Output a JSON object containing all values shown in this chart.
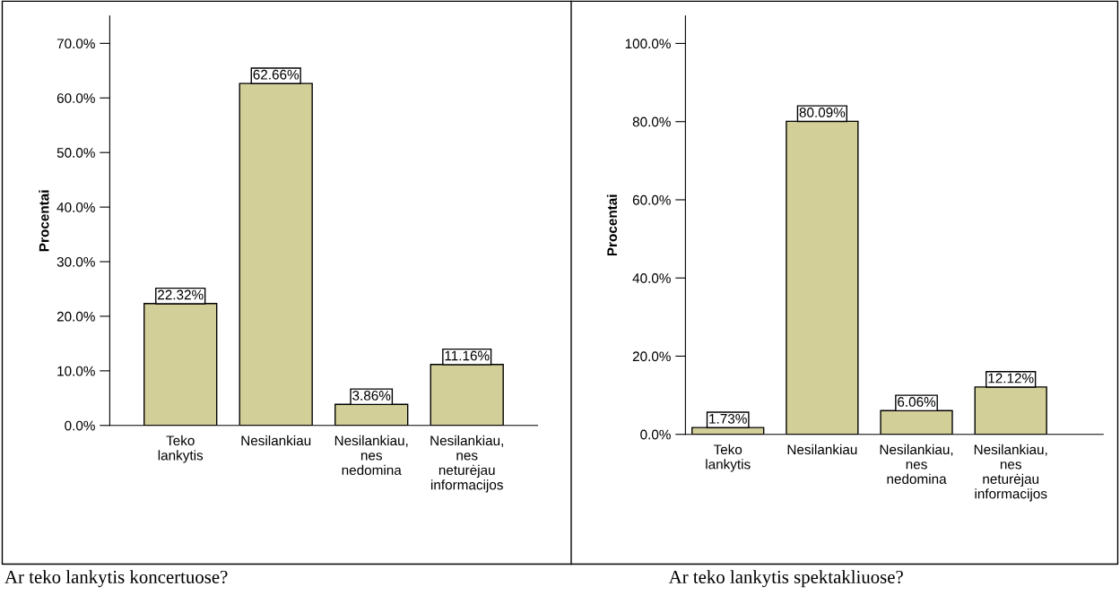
{
  "chart_data": [
    {
      "type": "bar",
      "ylabel": "Procentai",
      "categories": [
        "Teko\nlankytis",
        "Nesilankiau",
        "Nesilankiau,\nnes\nnedomina",
        "Nesilankiau,\nnes\nneturėjau\ninformacijos"
      ],
      "values": [
        22.32,
        62.66,
        3.86,
        11.16
      ],
      "value_labels": [
        "22.32%",
        "62.66%",
        "3.86%",
        "11.16%"
      ],
      "color": "#d3cf98",
      "ylim": [
        0,
        75
      ],
      "yticks": [
        {
          "value": 0,
          "label": "0.0%"
        },
        {
          "value": 10,
          "label": "10.0%"
        },
        {
          "value": 20,
          "label": "20.0%"
        },
        {
          "value": 30,
          "label": "30.0%"
        },
        {
          "value": 40,
          "label": "40.0%"
        },
        {
          "value": 50,
          "label": "50.0%"
        },
        {
          "value": 60,
          "label": "60.0%"
        },
        {
          "value": 70,
          "label": "70.0%"
        }
      ],
      "grid": false,
      "annotations": [
        "Ar teko lankytis koncertuose?"
      ]
    },
    {
      "type": "bar",
      "ylabel": "Procentai",
      "categories": [
        "Teko\nlankytis",
        "Nesilankiau",
        "Nesilankiau,\nnes\nnedomina",
        "Nesilankiau,\nnes\nneturėjau\ninformacijos"
      ],
      "values": [
        1.73,
        80.09,
        6.06,
        12.12
      ],
      "value_labels": [
        "1.73%",
        "80.09%",
        "6.06%",
        "12.12%"
      ],
      "color": "#d3cf98",
      "ylim": [
        0,
        107
      ],
      "yticks": [
        {
          "value": 0,
          "label": "0.0%"
        },
        {
          "value": 20,
          "label": "20.0%"
        },
        {
          "value": 40,
          "label": "40.0%"
        },
        {
          "value": 60,
          "label": "60.0%"
        },
        {
          "value": 80,
          "label": "80.0%"
        },
        {
          "value": 100,
          "label": "100.0%"
        }
      ],
      "grid": false,
      "annotations": [
        "Ar teko lankytis spektakliuose?"
      ]
    }
  ]
}
